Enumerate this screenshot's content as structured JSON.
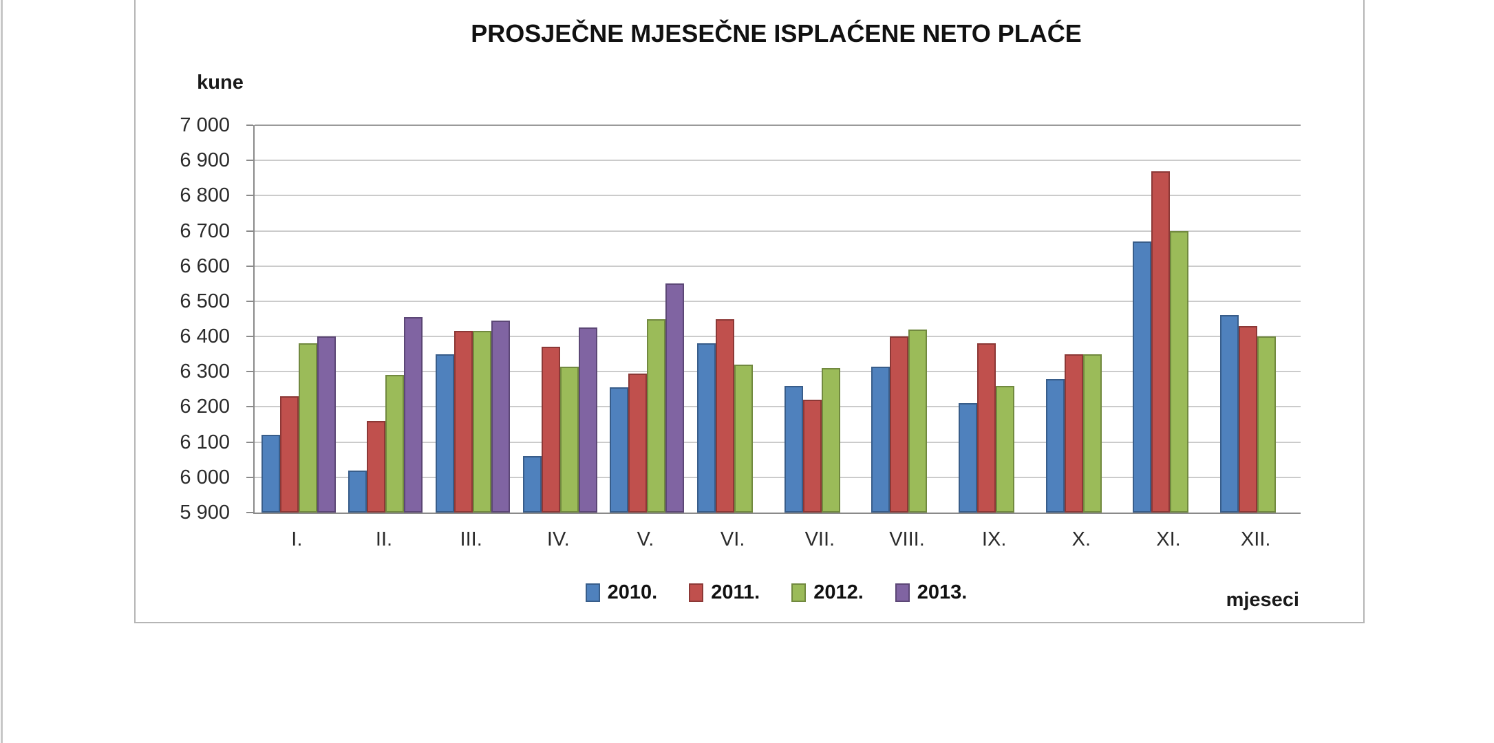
{
  "page": {
    "background_color": "#ffffff",
    "frame_border_color": "#b5b5b5"
  },
  "chart_data": {
    "type": "bar",
    "title": "PROSJEČNE MJESEČNE ISPLAĆENE NETO PLAĆE",
    "ylabel": "kune",
    "xlabel": "mjeseci",
    "ylim": [
      5900,
      7000
    ],
    "ytick_step": 100,
    "grid": true,
    "legend_position": "bottom-center",
    "axis_color": "#8a8a8a",
    "gridline_color": "#cbcbcb",
    "categories": [
      "I.",
      "II.",
      "III.",
      "IV.",
      "V.",
      "VI.",
      "VII.",
      "VIII.",
      "IX.",
      "X.",
      "XI.",
      "XII."
    ],
    "series": [
      {
        "name": "2010.",
        "color": "#4f81bd",
        "border_color": "#385d8a",
        "values": [
          6120,
          6020,
          6350,
          6060,
          6255,
          6380,
          6260,
          6315,
          6210,
          6280,
          6670,
          6460
        ]
      },
      {
        "name": "2011.",
        "color": "#c0504d",
        "border_color": "#8c3836",
        "values": [
          6230,
          6160,
          6415,
          6370,
          6295,
          6450,
          6220,
          6400,
          6380,
          6350,
          6870,
          6430
        ]
      },
      {
        "name": "2012.",
        "color": "#9bbb59",
        "border_color": "#71893f",
        "values": [
          6380,
          6290,
          6415,
          6315,
          6450,
          6320,
          6310,
          6420,
          6260,
          6350,
          6700,
          6400
        ]
      },
      {
        "name": "2013.",
        "color": "#8064a2",
        "border_color": "#5c4776",
        "values": [
          6400,
          6455,
          6445,
          6425,
          6550,
          null,
          null,
          null,
          null,
          null,
          null,
          null
        ]
      }
    ]
  }
}
